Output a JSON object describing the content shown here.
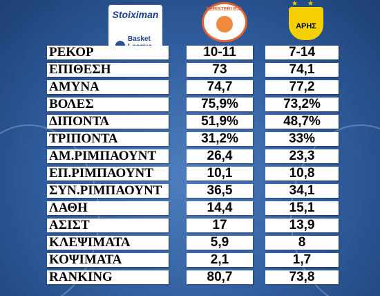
{
  "header": {
    "sponsor": "Stoiximan",
    "league_line1": "Basket",
    "league_line2": "League",
    "team1_logo": "PERISTERI B.C.",
    "team2_logo": "ΑΡΗΣ"
  },
  "table": {
    "rows": [
      [
        "ΡΕΚΟΡ",
        "10-11",
        "7-14"
      ],
      [
        "ΕΠΙΘΕΣΗ",
        "73",
        "74,1"
      ],
      [
        "ΑΜΥΝΑ",
        "74,7",
        "77,2"
      ],
      [
        "ΒΟΛΕΣ",
        "75,9%",
        "73,2%"
      ],
      [
        "ΔΙΠΟΝΤΑ",
        "51,9%",
        "48,7%"
      ],
      [
        "ΤΡΙΠΟΝΤΑ",
        "31,2%",
        "33%"
      ],
      [
        "ΑΜ.ΡΙΜΠΑΟΥΝΤ",
        "26,4",
        "23,3"
      ],
      [
        "ΕΠ.ΡΙΜΠΑΟΥΝΤ",
        "10,1",
        "10,8"
      ],
      [
        "ΣΥΝ.ΡΙΜΠΑΟΥΝΤ",
        "36,5",
        "34,1"
      ],
      [
        "ΛΑΘΗ",
        "14,4",
        "15,1"
      ],
      [
        "ΑΣΙΣΤ",
        "17",
        "13,9"
      ],
      [
        "ΚΛΕΨΙΜΑΤΑ",
        "5,9",
        "8"
      ],
      [
        "ΚΟΨΙΜΑΤΑ",
        "2,1",
        "1,7"
      ],
      [
        "RANKING",
        "80,7",
        "73,8"
      ]
    ]
  }
}
